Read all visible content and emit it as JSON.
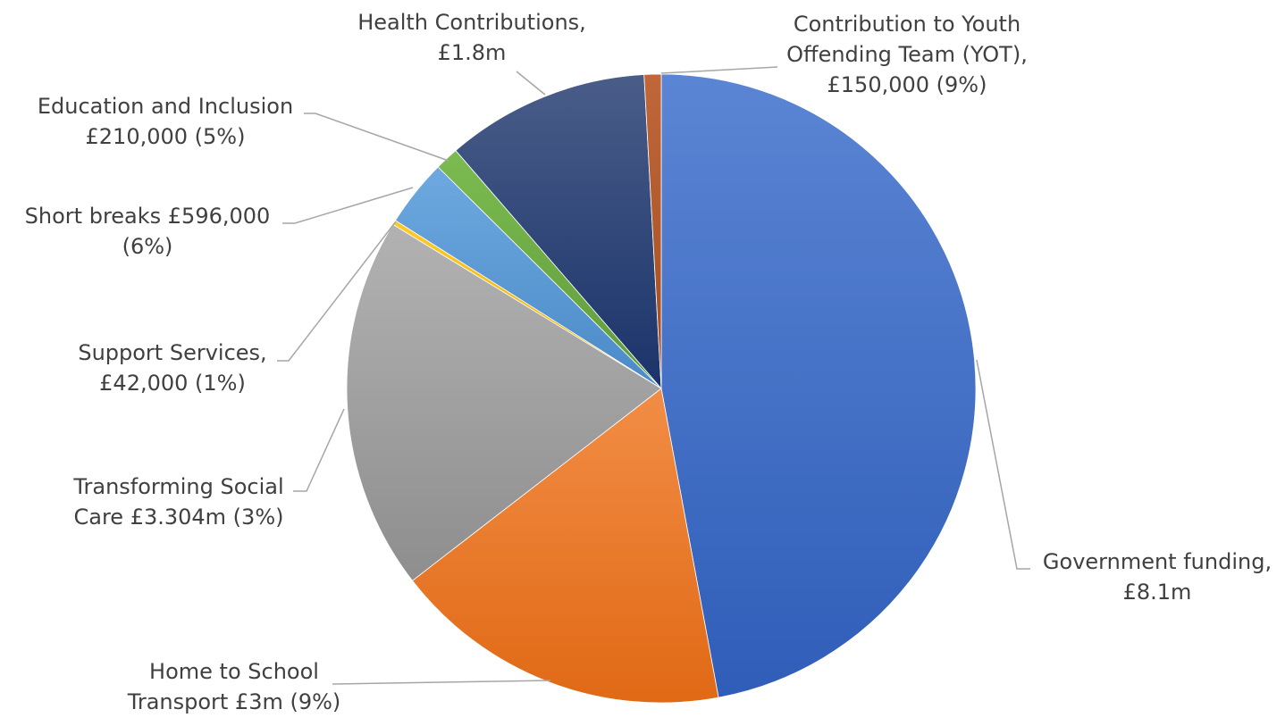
{
  "chart_data": {
    "type": "pie",
    "title": "",
    "legend": "none",
    "start_angle_deg": 0,
    "direction": "clockwise",
    "slices": [
      {
        "key": "government",
        "value": 8.1,
        "unit": "£m",
        "label_lines": [
          "Government funding,",
          "£8.1m"
        ],
        "color": "#4472C4",
        "color_light": "#5b85d4",
        "color_dark": "#2f5db8"
      },
      {
        "key": "home-school",
        "value": 3.0,
        "unit": "£m",
        "label_lines": [
          "Home to School",
          "Transport £3m (9%)"
        ],
        "color": "#ED7D31",
        "color_light": "#f28d46",
        "color_dark": "#e06915"
      },
      {
        "key": "social-care",
        "value": 3.304,
        "unit": "£m",
        "label_lines": [
          "Transforming Social",
          "Care £3.304m (3%)"
        ],
        "color": "#A5A5A5",
        "color_light": "#b2b2b2",
        "color_dark": "#8e8e8e"
      },
      {
        "key": "support",
        "value": 0.042,
        "unit": "£m",
        "label_lines": [
          "Support Services,",
          "£42,000 (1%)"
        ],
        "color": "#FFC000",
        "color_light": "#ffca28",
        "color_dark": "#e8ad00"
      },
      {
        "key": "short-breaks",
        "value": 0.596,
        "unit": "£m",
        "label_lines": [
          "Short breaks  £596,000",
          "(6%)"
        ],
        "color": "#5B9BD5",
        "color_light": "#6ea9e0",
        "color_dark": "#4a8ac7"
      },
      {
        "key": "education",
        "value": 0.21,
        "unit": "£m",
        "label_lines": [
          "Education and Inclusion",
          "£210,000 (5%)"
        ],
        "color": "#70AD47",
        "color_light": "#7cbb51",
        "color_dark": "#5f9a3a"
      },
      {
        "key": "health",
        "value": 1.8,
        "unit": "£m",
        "label_lines": [
          "Health Contributions,",
          "£1.8m"
        ],
        "color": "#264478",
        "color_light": "#4a5d89",
        "color_dark": "#1a336a"
      },
      {
        "key": "yot",
        "value": 0.15,
        "unit": "£m",
        "label_lines": [
          "Contribution to Youth",
          "Offending Team (YOT),",
          "£150,000 (9%)"
        ],
        "color": "#B35A2A",
        "color_light": "#c0673a",
        "color_dark": "#a04d20"
      }
    ]
  }
}
